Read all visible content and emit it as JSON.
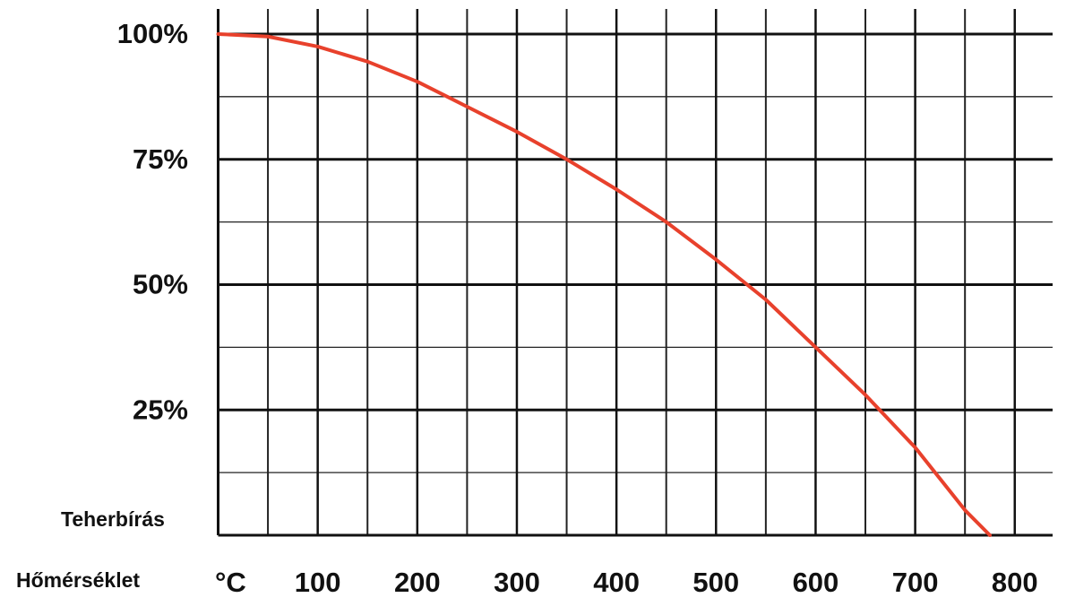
{
  "chart_data": {
    "type": "line",
    "ylabel": "Teherbírás",
    "xlabel": "Hőmérséklet",
    "x_unit": "°C",
    "x": [
      0,
      50,
      100,
      150,
      200,
      250,
      300,
      350,
      400,
      450,
      500,
      550,
      600,
      650,
      700,
      750,
      775
    ],
    "series": [
      {
        "name": "Teherbírás",
        "color": "#e8412c",
        "values": [
          100,
          99.5,
          97.5,
          94.5,
          90.5,
          85.5,
          80.5,
          75,
          69,
          62.5,
          55,
          47,
          37.5,
          28,
          17.5,
          5,
          0
        ]
      }
    ],
    "xlim": [
      0,
      838
    ],
    "ylim": [
      0,
      105
    ],
    "xticks": [
      100,
      200,
      300,
      400,
      500,
      600,
      700,
      800
    ],
    "x_minor_ticks": [
      50,
      150,
      250,
      350,
      450,
      550,
      650,
      750
    ],
    "yticks": [
      {
        "value": 25,
        "label": "25%"
      },
      {
        "value": 50,
        "label": "50%"
      },
      {
        "value": 75,
        "label": "75%"
      },
      {
        "value": 100,
        "label": "100%"
      }
    ],
    "y_minor_ticks": [
      12.5,
      37.5,
      62.5,
      87.5
    ],
    "grid": true
  }
}
